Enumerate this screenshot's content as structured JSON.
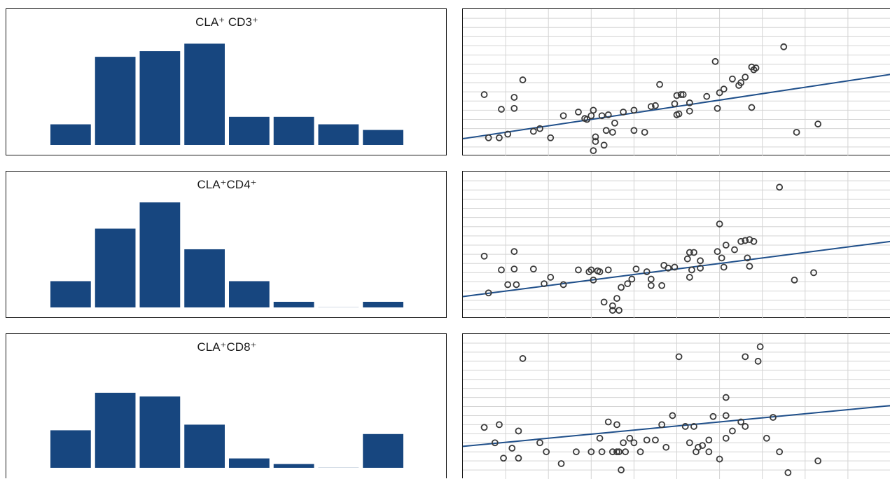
{
  "colors": {
    "bar": "#17467f",
    "fit_line": "#1f4f8a",
    "grid": "#d4d4d4",
    "point": "#3a3a3a",
    "border": "#1a1a1a"
  },
  "chart_data": [
    {
      "type": "bar",
      "title": "CLA⁺ CD3⁺",
      "values": [
        11,
        47,
        50,
        54,
        15,
        15,
        11,
        8
      ]
    },
    {
      "type": "scatter",
      "xlim": [
        0,
        20
      ],
      "ylim": [
        0,
        16
      ],
      "grid": true,
      "points": [
        [
          1.0,
          6.7
        ],
        [
          1.8,
          5.1
        ],
        [
          1.2,
          2.0
        ],
        [
          1.7,
          2.0
        ],
        [
          2.1,
          2.4
        ],
        [
          2.4,
          5.2
        ],
        [
          2.4,
          6.4
        ],
        [
          2.8,
          8.3
        ],
        [
          3.3,
          2.7
        ],
        [
          3.6,
          3.0
        ],
        [
          4.1,
          2.0
        ],
        [
          4.7,
          4.4
        ],
        [
          5.4,
          4.8
        ],
        [
          5.7,
          4.1
        ],
        [
          5.8,
          4.0
        ],
        [
          6.0,
          4.4
        ],
        [
          6.1,
          5.0
        ],
        [
          6.1,
          0.6
        ],
        [
          6.2,
          1.6
        ],
        [
          6.2,
          2.1
        ],
        [
          6.5,
          4.4
        ],
        [
          6.6,
          1.2
        ],
        [
          6.7,
          2.8
        ],
        [
          6.8,
          4.5
        ],
        [
          7.0,
          2.6
        ],
        [
          7.1,
          3.6
        ],
        [
          7.5,
          4.8
        ],
        [
          8.0,
          2.8
        ],
        [
          8.0,
          5.0
        ],
        [
          8.5,
          2.6
        ],
        [
          8.8,
          5.4
        ],
        [
          9.0,
          5.5
        ],
        [
          9.2,
          7.8
        ],
        [
          9.9,
          5.7
        ],
        [
          10.0,
          4.5
        ],
        [
          10.0,
          6.6
        ],
        [
          10.1,
          4.6
        ],
        [
          10.2,
          6.7
        ],
        [
          10.3,
          6.7
        ],
        [
          10.6,
          4.9
        ],
        [
          10.6,
          5.8
        ],
        [
          11.4,
          6.5
        ],
        [
          11.8,
          10.3
        ],
        [
          11.9,
          5.2
        ],
        [
          12.0,
          6.9
        ],
        [
          12.2,
          7.3
        ],
        [
          12.6,
          8.4
        ],
        [
          12.9,
          7.7
        ],
        [
          13.0,
          8.0
        ],
        [
          13.2,
          8.6
        ],
        [
          13.5,
          5.3
        ],
        [
          13.5,
          9.7
        ],
        [
          13.6,
          9.4
        ],
        [
          13.7,
          9.6
        ],
        [
          15.0,
          11.9
        ],
        [
          15.6,
          2.6
        ],
        [
          16.6,
          3.5
        ]
      ],
      "fit": {
        "x": [
          0,
          20
        ],
        "y": [
          1.9,
          8.9
        ]
      }
    },
    {
      "type": "bar",
      "title": "CLA⁺CD4⁺",
      "values": [
        14,
        42,
        56,
        31,
        14,
        3,
        0,
        3
      ]
    },
    {
      "type": "scatter",
      "xlim": [
        0,
        20
      ],
      "ylim": [
        0,
        16
      ],
      "grid": true,
      "points": [
        [
          1.0,
          6.8
        ],
        [
          1.2,
          2.8
        ],
        [
          1.8,
          5.3
        ],
        [
          2.1,
          3.7
        ],
        [
          2.5,
          3.7
        ],
        [
          2.4,
          5.4
        ],
        [
          2.4,
          7.3
        ],
        [
          3.3,
          5.4
        ],
        [
          3.8,
          3.8
        ],
        [
          4.1,
          4.5
        ],
        [
          4.7,
          3.7
        ],
        [
          5.4,
          5.3
        ],
        [
          5.9,
          5.1
        ],
        [
          6.0,
          5.3
        ],
        [
          6.1,
          4.2
        ],
        [
          6.3,
          5.2
        ],
        [
          6.4,
          5.1
        ],
        [
          6.6,
          1.8
        ],
        [
          6.8,
          5.3
        ],
        [
          7.0,
          0.9
        ],
        [
          7.0,
          1.4
        ],
        [
          7.2,
          2.2
        ],
        [
          7.3,
          0.9
        ],
        [
          7.4,
          3.4
        ],
        [
          7.7,
          3.8
        ],
        [
          7.9,
          4.3
        ],
        [
          8.1,
          5.4
        ],
        [
          8.6,
          5.1
        ],
        [
          8.8,
          4.3
        ],
        [
          8.8,
          3.6
        ],
        [
          9.3,
          3.6
        ],
        [
          9.4,
          5.8
        ],
        [
          9.6,
          5.5
        ],
        [
          9.9,
          5.6
        ],
        [
          10.5,
          6.5
        ],
        [
          10.6,
          7.2
        ],
        [
          10.6,
          4.5
        ],
        [
          10.7,
          5.3
        ],
        [
          10.8,
          7.2
        ],
        [
          11.1,
          6.3
        ],
        [
          11.1,
          5.5
        ],
        [
          11.9,
          7.3
        ],
        [
          12.0,
          10.3
        ],
        [
          12.1,
          6.6
        ],
        [
          12.2,
          5.6
        ],
        [
          12.3,
          8.0
        ],
        [
          12.7,
          7.5
        ],
        [
          13.0,
          8.4
        ],
        [
          13.2,
          8.5
        ],
        [
          13.4,
          8.6
        ],
        [
          13.6,
          8.4
        ],
        [
          13.3,
          6.6
        ],
        [
          13.4,
          5.7
        ],
        [
          14.8,
          14.3
        ],
        [
          15.5,
          4.2
        ],
        [
          16.4,
          5.0
        ]
      ],
      "fit": {
        "x": [
          0,
          20
        ],
        "y": [
          2.4,
          8.4
        ]
      }
    },
    {
      "type": "bar",
      "title": "CLA⁺CD8⁺",
      "values": [
        20,
        40,
        38,
        23,
        5,
        2,
        0,
        18
      ]
    },
    {
      "type": "scatter",
      "xlim": [
        0,
        20
      ],
      "ylim": [
        0,
        16
      ],
      "grid": true,
      "points": [
        [
          1.0,
          5.7
        ],
        [
          1.5,
          4.0
        ],
        [
          1.7,
          6.0
        ],
        [
          1.9,
          2.3
        ],
        [
          2.3,
          3.4
        ],
        [
          2.6,
          5.3
        ],
        [
          2.6,
          2.3
        ],
        [
          2.8,
          13.3
        ],
        [
          3.6,
          4.0
        ],
        [
          3.9,
          3.0
        ],
        [
          4.6,
          1.7
        ],
        [
          5.3,
          3.0
        ],
        [
          6.0,
          3.0
        ],
        [
          6.4,
          4.5
        ],
        [
          6.5,
          3.0
        ],
        [
          6.8,
          6.3
        ],
        [
          7.0,
          3.0
        ],
        [
          7.2,
          3.0
        ],
        [
          7.2,
          6.0
        ],
        [
          7.3,
          3.0
        ],
        [
          7.4,
          1.0
        ],
        [
          7.5,
          4.0
        ],
        [
          7.6,
          3.0
        ],
        [
          7.8,
          4.5
        ],
        [
          8.0,
          4.0
        ],
        [
          8.3,
          3.0
        ],
        [
          8.6,
          4.3
        ],
        [
          9.0,
          4.3
        ],
        [
          9.3,
          6.0
        ],
        [
          9.5,
          3.5
        ],
        [
          9.8,
          7.0
        ],
        [
          10.1,
          13.5
        ],
        [
          10.4,
          5.8
        ],
        [
          10.6,
          4.0
        ],
        [
          10.8,
          5.8
        ],
        [
          10.9,
          3.0
        ],
        [
          11.2,
          3.7
        ],
        [
          11.0,
          3.5
        ],
        [
          11.5,
          3.0
        ],
        [
          11.5,
          4.3
        ],
        [
          11.7,
          6.9
        ],
        [
          12.0,
          2.2
        ],
        [
          12.3,
          9.0
        ],
        [
          12.3,
          7.0
        ],
        [
          12.3,
          4.5
        ],
        [
          12.6,
          5.3
        ],
        [
          13.0,
          6.3
        ],
        [
          13.2,
          5.8
        ],
        [
          13.2,
          13.5
        ],
        [
          13.8,
          13.0
        ],
        [
          13.9,
          14.6
        ],
        [
          14.5,
          6.8
        ],
        [
          14.2,
          4.5
        ],
        [
          14.8,
          3.0
        ],
        [
          15.2,
          0.7
        ],
        [
          16.6,
          2.0
        ]
      ],
      "fit": {
        "x": [
          0,
          20
        ],
        "y": [
          3.6,
          8.1
        ]
      }
    }
  ]
}
